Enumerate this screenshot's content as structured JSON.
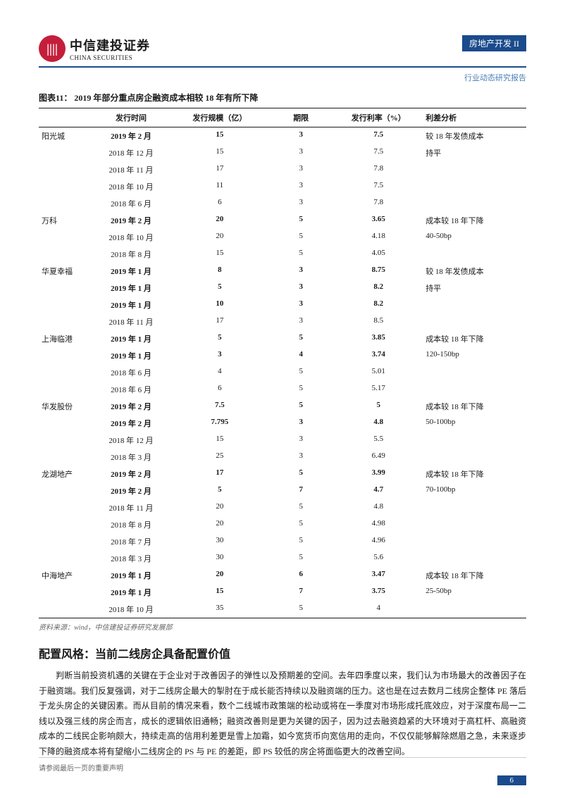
{
  "header": {
    "logo_cn": "中信建投证券",
    "logo_en": "CHINA SECURITIES",
    "logo_mark": "||||",
    "category": "房地产开发 II",
    "subtitle": "行业动态研究报告"
  },
  "figure": {
    "label": "图表11：",
    "title": "2019 年部分重点房企融资成本相较 18 年有所下降"
  },
  "table": {
    "columns": [
      "",
      "发行时间",
      "发行规模（亿）",
      "期限",
      "发行利率（%）",
      "利差分析"
    ],
    "rows": [
      {
        "c": "阳光城",
        "t": "2019 年 2 月",
        "s": "15",
        "p": "3",
        "r": "7.5",
        "a": "较 18 年发债成本",
        "hl": true
      },
      {
        "c": "",
        "t": "2018 年 12 月",
        "s": "15",
        "p": "3",
        "r": "7.5",
        "a": "持平",
        "hl": false
      },
      {
        "c": "",
        "t": "2018 年 11 月",
        "s": "17",
        "p": "3",
        "r": "7.8",
        "a": "",
        "hl": false
      },
      {
        "c": "",
        "t": "2018 年 10 月",
        "s": "11",
        "p": "3",
        "r": "7.5",
        "a": "",
        "hl": false
      },
      {
        "c": "",
        "t": "2018 年 6 月",
        "s": "6",
        "p": "3",
        "r": "7.8",
        "a": "",
        "hl": false
      },
      {
        "c": "万科",
        "t": "2019 年 2 月",
        "s": "20",
        "p": "5",
        "r": "3.65",
        "a": "成本较 18 年下降",
        "hl": true
      },
      {
        "c": "",
        "t": "2018 年 10 月",
        "s": "20",
        "p": "5",
        "r": "4.18",
        "a": "40-50bp",
        "hl": false
      },
      {
        "c": "",
        "t": "2018 年 8 月",
        "s": "15",
        "p": "5",
        "r": "4.05",
        "a": "",
        "hl": false
      },
      {
        "c": "华夏幸福",
        "t": "2019 年 1 月",
        "s": "8",
        "p": "3",
        "r": "8.75",
        "a": "较 18 年发债成本",
        "hl": true
      },
      {
        "c": "",
        "t": "2019 年 1 月",
        "s": "5",
        "p": "3",
        "r": "8.2",
        "a": "持平",
        "hl": true
      },
      {
        "c": "",
        "t": "2019 年 1 月",
        "s": "10",
        "p": "3",
        "r": "8.2",
        "a": "",
        "hl": true
      },
      {
        "c": "",
        "t": "2018 年 11 月",
        "s": "17",
        "p": "3",
        "r": "8.5",
        "a": "",
        "hl": false
      },
      {
        "c": "上海临港",
        "t": "2019 年 1 月",
        "s": "5",
        "p": "5",
        "r": "3.85",
        "a": "成本较 18 年下降",
        "hl": true
      },
      {
        "c": "",
        "t": "2019 年 1 月",
        "s": "3",
        "p": "4",
        "r": "3.74",
        "a": "120-150bp",
        "hl": true
      },
      {
        "c": "",
        "t": "2018 年 6 月",
        "s": "4",
        "p": "5",
        "r": "5.01",
        "a": "",
        "hl": false
      },
      {
        "c": "",
        "t": "2018 年 6 月",
        "s": "6",
        "p": "5",
        "r": "5.17",
        "a": "",
        "hl": false
      },
      {
        "c": "华发股份",
        "t": "2019 年 2 月",
        "s": "7.5",
        "p": "5",
        "r": "5",
        "a": "成本较 18 年下降",
        "hl": true
      },
      {
        "c": "",
        "t": "2019 年 2 月",
        "s": "7.795",
        "p": "3",
        "r": "4.8",
        "a": "50-100bp",
        "hl": true
      },
      {
        "c": "",
        "t": "2018 年 12 月",
        "s": "15",
        "p": "3",
        "r": "5.5",
        "a": "",
        "hl": false
      },
      {
        "c": "",
        "t": "2018 年 3 月",
        "s": "25",
        "p": "3",
        "r": "6.49",
        "a": "",
        "hl": false
      },
      {
        "c": "龙湖地产",
        "t": "2019 年 2 月",
        "s": "17",
        "p": "5",
        "r": "3.99",
        "a": "成本较 18 年下降",
        "hl": true
      },
      {
        "c": "",
        "t": "2019 年 2 月",
        "s": "5",
        "p": "7",
        "r": "4.7",
        "a": "70-100bp",
        "hl": true
      },
      {
        "c": "",
        "t": "2018 年 11 月",
        "s": "20",
        "p": "5",
        "r": "4.8",
        "a": "",
        "hl": false
      },
      {
        "c": "",
        "t": "2018 年 8 月",
        "s": "20",
        "p": "5",
        "r": "4.98",
        "a": "",
        "hl": false
      },
      {
        "c": "",
        "t": "2018 年 7 月",
        "s": "30",
        "p": "5",
        "r": "4.96",
        "a": "",
        "hl": false
      },
      {
        "c": "",
        "t": "2018 年 3 月",
        "s": "30",
        "p": "5",
        "r": "5.6",
        "a": "",
        "hl": false
      },
      {
        "c": "中海地产",
        "t": "2019 年 1 月",
        "s": "20",
        "p": "6",
        "r": "3.47",
        "a": "成本较 18 年下降",
        "hl": true
      },
      {
        "c": "",
        "t": "2019 年 1 月",
        "s": "15",
        "p": "7",
        "r": "3.75",
        "a": "25-50bp",
        "hl": true
      },
      {
        "c": "",
        "t": "2018 年 10 月",
        "s": "35",
        "p": "5",
        "r": "4",
        "a": "",
        "hl": false
      }
    ]
  },
  "source": "资料来源：wind，中信建投证券研究发展部",
  "section": {
    "title": "配置风格：当前二线房企具备配置价值",
    "body": "判断当前投资机遇的关键在于企业对于改善因子的弹性以及预期差的空间。去年四季度以来，我们认为市场最大的改善因子在于融资端。我们反复强调，对于二线房企最大的掣肘在于成长能否持续以及融资端的压力。这也是在过去数月二线房企整体 PE 落后于龙头房企的关键因素。而从目前的情况来看，数个二线城市政策端的松动或将在一季度对市场形成托底效应，对于深度布局一二线以及强三线的房企而言，成长的逻辑依旧通畅；融资改善则是更为关键的因子，因为过去融资趋紧的大环境对于高杠杆、高融资成本的二线民企影响颇大，持续走高的信用利差更是雪上加霜，如今宽货币向宽信用的走向，不仅仅能够解除燃眉之急，未来逐步下降的融资成本将有望缩小二线房企的 PS 与 PE 的差距，即 PS 较低的房企将面临更大的改善空间。"
  },
  "footer": {
    "disclaimer": "请参阅最后一页的重要声明",
    "page_num": "6"
  },
  "colors": {
    "brand_blue": "#1a4b8c",
    "brand_red": "#c41e3a",
    "link_blue": "#4a7fb5"
  }
}
